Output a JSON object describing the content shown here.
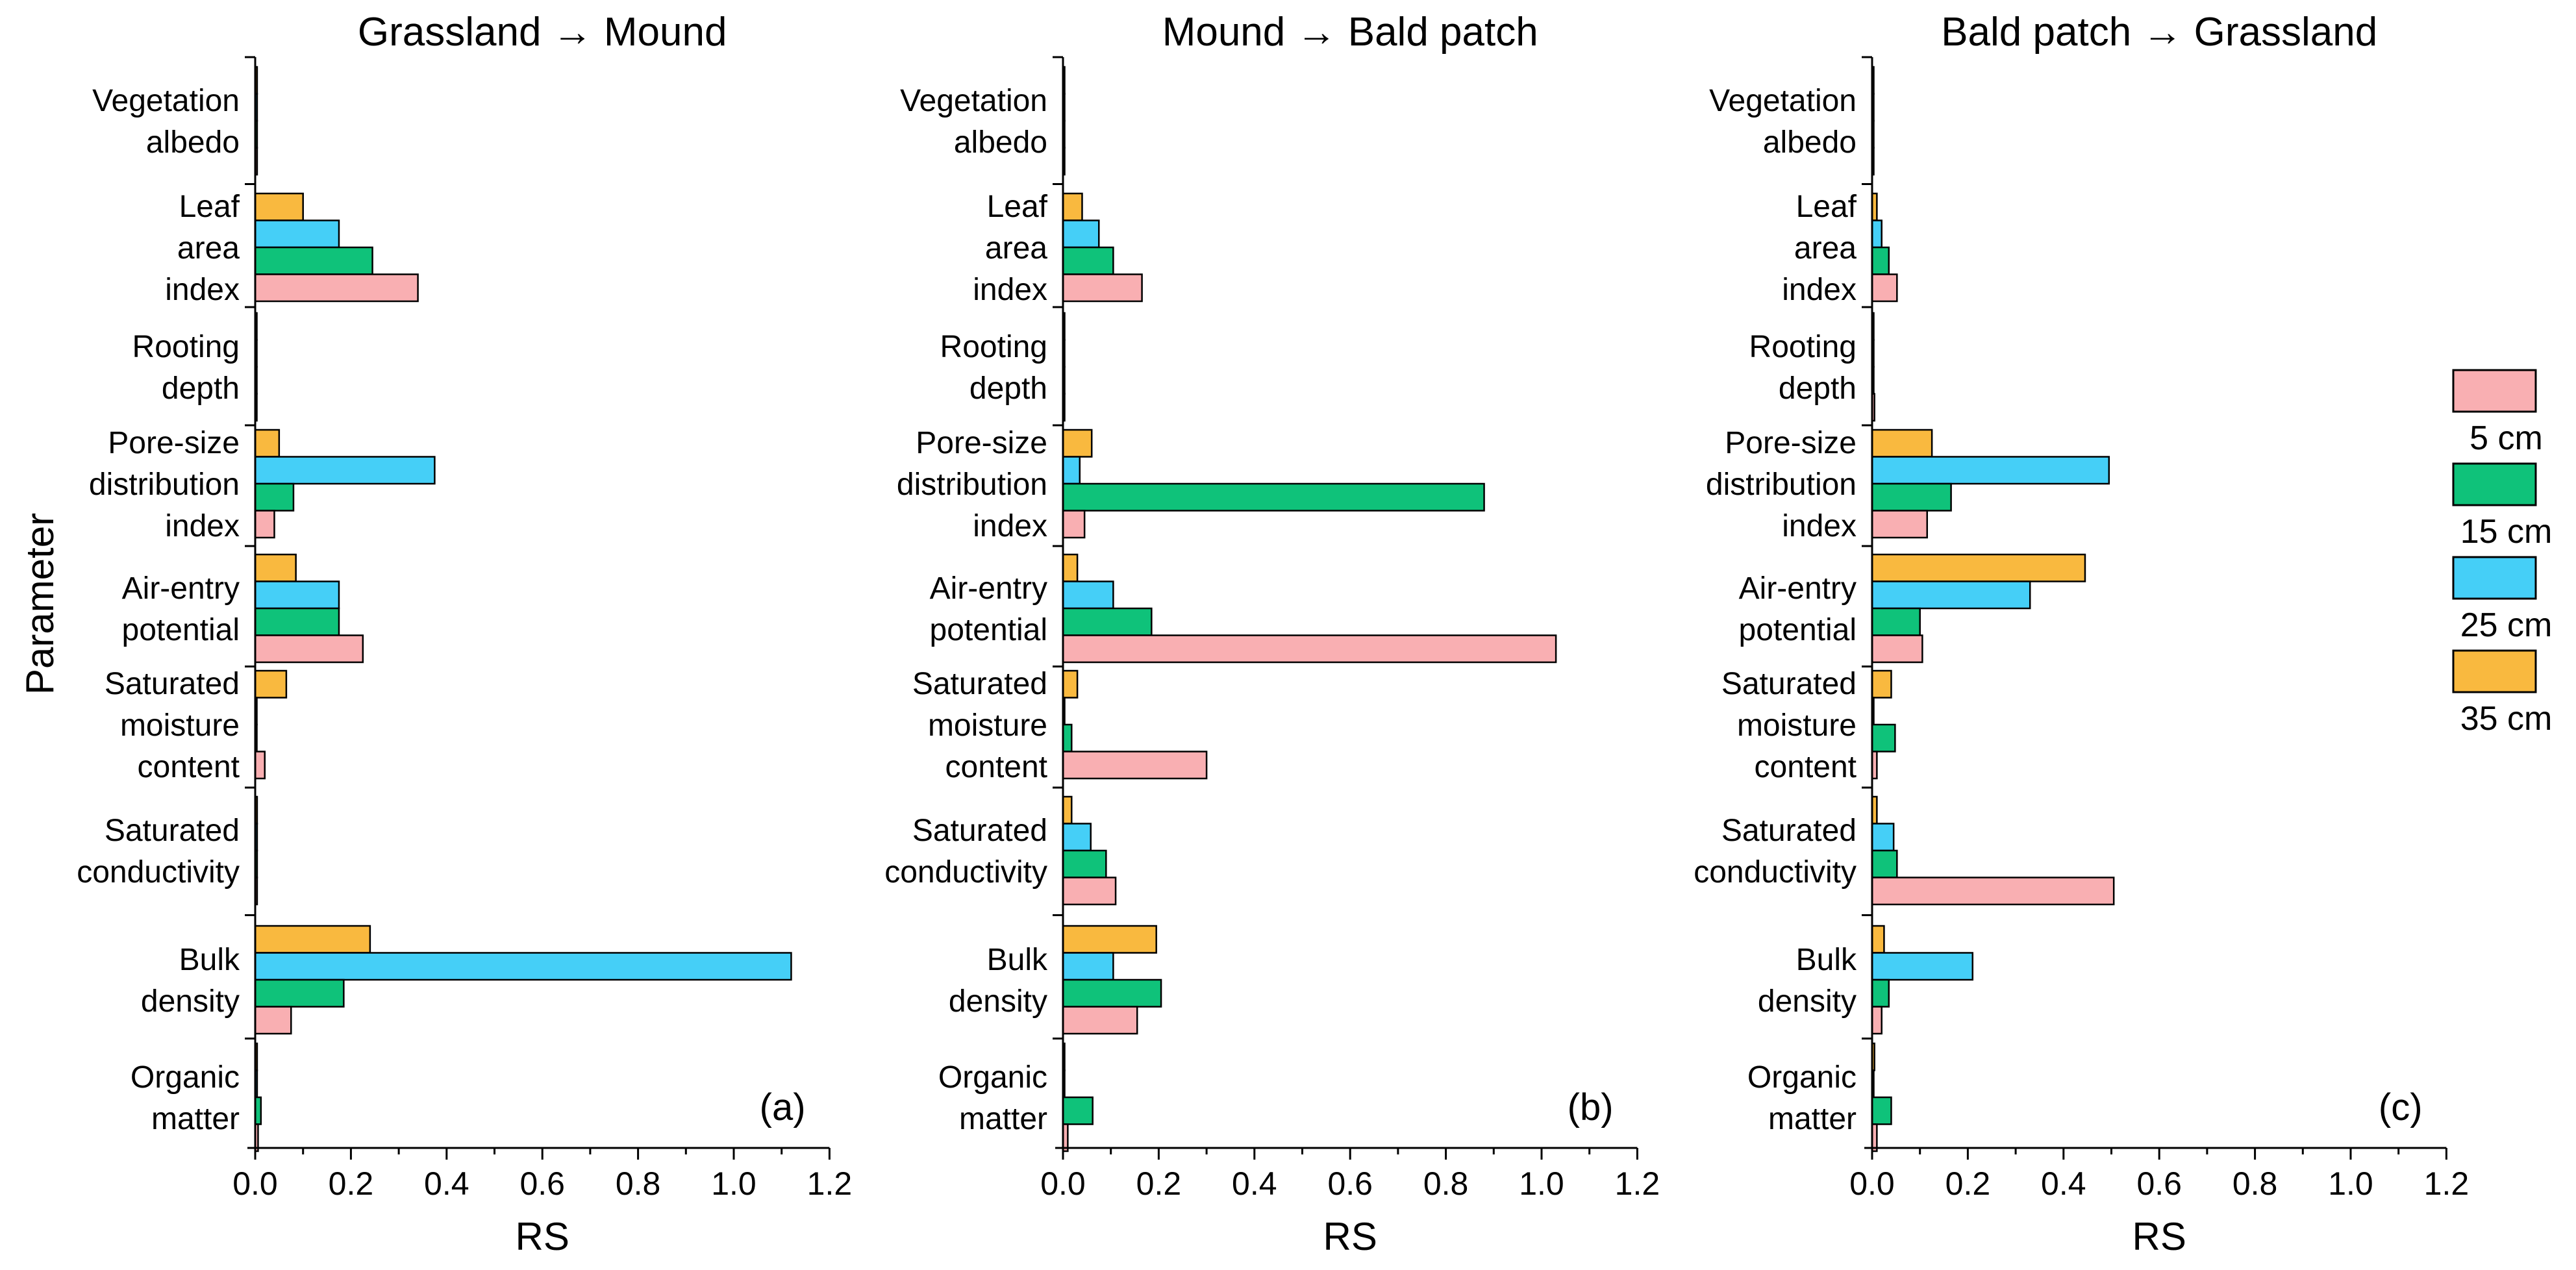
{
  "chart_data": [
    {
      "type": "bar",
      "orientation": "horizontal",
      "title": "Grassland → Mound",
      "panel_label": "(a)",
      "xlabel": "RS",
      "ylabel": "Parameter",
      "xlim": [
        0,
        1.2
      ],
      "xticks": [
        "0.0",
        "0.2",
        "0.4",
        "0.6",
        "0.8",
        "1.0",
        "1.2"
      ],
      "categories": [
        [
          "Vegetation",
          "albedo"
        ],
        [
          "Leaf",
          "area",
          "index"
        ],
        [
          "Rooting",
          "depth"
        ],
        [
          "Pore-size",
          "distribution",
          "index"
        ],
        [
          "Air-entry",
          "potential"
        ],
        [
          "Saturated",
          "moisture",
          "content"
        ],
        [
          "Saturated",
          "conductivity"
        ],
        [
          "Bulk",
          "density"
        ],
        [
          "Organic",
          "matter"
        ]
      ],
      "series": [
        {
          "name": "5 cm",
          "values": [
            0.004,
            0.34,
            0.002,
            0.04,
            0.225,
            0.02,
            0.004,
            0.075,
            0.006
          ]
        },
        {
          "name": "15 cm",
          "values": [
            0.004,
            0.245,
            0.002,
            0.08,
            0.175,
            0.002,
            0.004,
            0.185,
            0.012
          ]
        },
        {
          "name": "25 cm",
          "values": [
            0.004,
            0.175,
            0.002,
            0.375,
            0.175,
            0.002,
            0.004,
            1.12,
            0.004
          ]
        },
        {
          "name": "35 cm",
          "values": [
            0.004,
            0.1,
            0.002,
            0.05,
            0.085,
            0.065,
            0.004,
            0.24,
            0.004
          ]
        }
      ]
    },
    {
      "type": "bar",
      "orientation": "horizontal",
      "title": "Mound → Bald patch",
      "panel_label": "(b)",
      "xlabel": "RS",
      "xlim": [
        0,
        1.2
      ],
      "xticks": [
        "0.0",
        "0.2",
        "0.4",
        "0.6",
        "0.8",
        "1.0",
        "1.2"
      ],
      "categories": [
        [
          "Vegetation",
          "albedo"
        ],
        [
          "Leaf",
          "area",
          "index"
        ],
        [
          "Rooting",
          "depth"
        ],
        [
          "Pore-size",
          "distribution",
          "index"
        ],
        [
          "Air-entry",
          "potential"
        ],
        [
          "Saturated",
          "moisture",
          "content"
        ],
        [
          "Saturated",
          "conductivity"
        ],
        [
          "Bulk",
          "density"
        ],
        [
          "Organic",
          "matter"
        ]
      ],
      "series": [
        {
          "name": "5 cm",
          "values": [
            0.002,
            0.165,
            0.0,
            0.045,
            1.03,
            0.3,
            0.11,
            0.155,
            0.01
          ]
        },
        {
          "name": "15 cm",
          "values": [
            0.002,
            0.105,
            0.0,
            0.88,
            0.185,
            0.018,
            0.09,
            0.205,
            0.062
          ]
        },
        {
          "name": "25 cm",
          "values": [
            0.002,
            0.075,
            0.0,
            0.035,
            0.105,
            0.0,
            0.058,
            0.105,
            0.002
          ]
        },
        {
          "name": "35 cm",
          "values": [
            0.002,
            0.04,
            0.0,
            0.06,
            0.03,
            0.03,
            0.018,
            0.195,
            0.002
          ]
        }
      ]
    },
    {
      "type": "bar",
      "orientation": "horizontal",
      "title": "Bald patch → Grassland",
      "panel_label": "(c)",
      "xlabel": "RS",
      "xlim": [
        0,
        1.2
      ],
      "xticks": [
        "0.0",
        "0.2",
        "0.4",
        "0.6",
        "0.8",
        "1.0",
        "1.2"
      ],
      "categories": [
        [
          "Vegetation",
          "albedo"
        ],
        [
          "Leaf",
          "area",
          "index"
        ],
        [
          "Rooting",
          "depth"
        ],
        [
          "Pore-size",
          "distribution",
          "index"
        ],
        [
          "Air-entry",
          "potential"
        ],
        [
          "Saturated",
          "moisture",
          "content"
        ],
        [
          "Saturated",
          "conductivity"
        ],
        [
          "Bulk",
          "density"
        ],
        [
          "Organic",
          "matter"
        ]
      ],
      "series": [
        {
          "name": "5 cm",
          "values": [
            0.0,
            0.052,
            0.005,
            0.115,
            0.105,
            0.01,
            0.505,
            0.02,
            0.01
          ]
        },
        {
          "name": "15 cm",
          "values": [
            0.0,
            0.035,
            0.002,
            0.165,
            0.1,
            0.048,
            0.052,
            0.035,
            0.04
          ]
        },
        {
          "name": "25 cm",
          "values": [
            0.0,
            0.02,
            0.002,
            0.495,
            0.33,
            0.002,
            0.045,
            0.21,
            0.002
          ]
        },
        {
          "name": "35 cm",
          "values": [
            0.0,
            0.01,
            0.002,
            0.125,
            0.445,
            0.04,
            0.01,
            0.025,
            0.005
          ]
        }
      ]
    }
  ],
  "legend": {
    "placement": "right",
    "entries": [
      "5 cm",
      "15 cm",
      "25 cm",
      "35 cm"
    ]
  },
  "colors": {
    "5 cm": "#F9AFB2",
    "15 cm": "#0FC27A",
    "25 cm": "#45CFF7",
    "35 cm": "#F9B93F",
    "axis": "#000000"
  }
}
